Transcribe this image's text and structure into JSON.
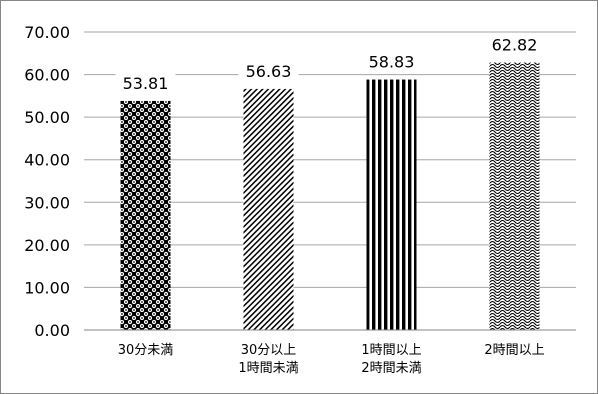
{
  "chart_data": {
    "type": "bar",
    "title": "",
    "xlabel": "",
    "ylabel": "",
    "ylim": [
      0,
      70
    ],
    "yticks": [
      "0.00",
      "10.00",
      "20.00",
      "30.00",
      "40.00",
      "50.00",
      "60.00",
      "70.00"
    ],
    "grid": true,
    "legend": "none",
    "categories": [
      [
        "30分未満"
      ],
      [
        "30分以上",
        "1時間未満"
      ],
      [
        "1時間以上",
        "2時間未満"
      ],
      [
        "2時間以上"
      ]
    ],
    "values": [
      53.81,
      56.63,
      58.83,
      62.82
    ],
    "value_labels": [
      "53.81",
      "56.63",
      "58.83",
      "62.82"
    ],
    "patterns": [
      "polka-dot",
      "diagonal-hatch",
      "vertical-stripes",
      "wave"
    ],
    "colors": {
      "bar": "#000000",
      "background": "#ffffff",
      "gridline": "#a6a6a6",
      "axis": "#868686",
      "frame": "#868686"
    }
  }
}
